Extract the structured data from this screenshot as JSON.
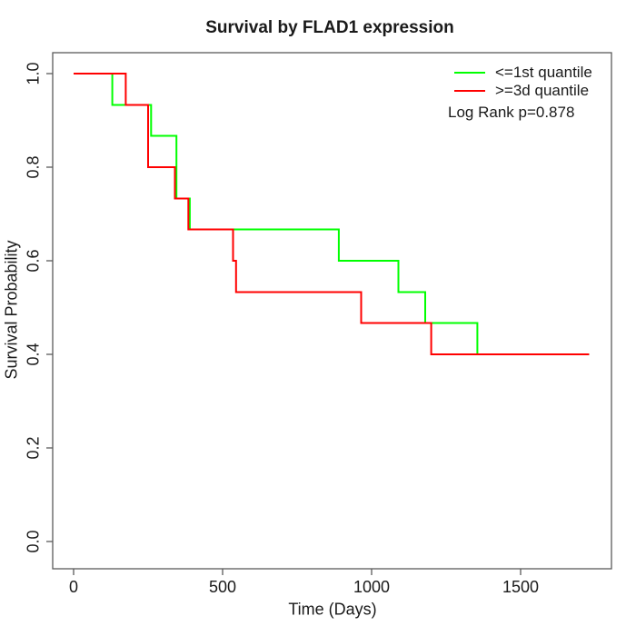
{
  "title": "Survival by FLAD1 expression",
  "legend": {
    "items": [
      {
        "label": "<=1st quantile",
        "color": "#00ff00"
      },
      {
        "label": ">=3d quantile",
        "color": "#ff0000"
      }
    ],
    "annotation": "Log Rank p=0.878",
    "position": "top-right"
  },
  "chart_data": {
    "type": "line",
    "variant": "kaplan-meier-step",
    "title": "Survival by FLAD1 expression",
    "xlabel": "Time (Days)",
    "ylabel": "Survival Probability",
    "xlim": [
      0,
      1800
    ],
    "ylim": [
      0,
      1.0
    ],
    "x_ticks": [
      0,
      500,
      1000,
      1500
    ],
    "y_ticks": [
      0.0,
      0.2,
      0.4,
      0.6,
      0.8,
      1.0
    ],
    "y_tick_labels": [
      "0.0",
      "0.2",
      "0.4",
      "0.6",
      "0.8",
      "1.0"
    ],
    "grid": false,
    "legend_position": "top-right",
    "annotation": "Log Rank p=0.878",
    "axis_color": "#5a5a5a",
    "series": [
      {
        "name": "<=1st quantile",
        "color": "#00ff00",
        "steps": [
          [
            0,
            1.0
          ],
          [
            130,
            0.933
          ],
          [
            260,
            0.867
          ],
          [
            345,
            0.733
          ],
          [
            390,
            0.667
          ],
          [
            890,
            0.6
          ],
          [
            1090,
            0.533
          ],
          [
            1180,
            0.467
          ],
          [
            1355,
            0.4
          ]
        ],
        "end_time": 1730
      },
      {
        "name": ">=3d quantile",
        "color": "#ff0000",
        "steps": [
          [
            0,
            1.0
          ],
          [
            175,
            0.933
          ],
          [
            250,
            0.8
          ],
          [
            340,
            0.733
          ],
          [
            385,
            0.667
          ],
          [
            535,
            0.6
          ],
          [
            545,
            0.533
          ],
          [
            965,
            0.467
          ],
          [
            1200,
            0.4
          ]
        ],
        "end_time": 1730
      }
    ]
  }
}
